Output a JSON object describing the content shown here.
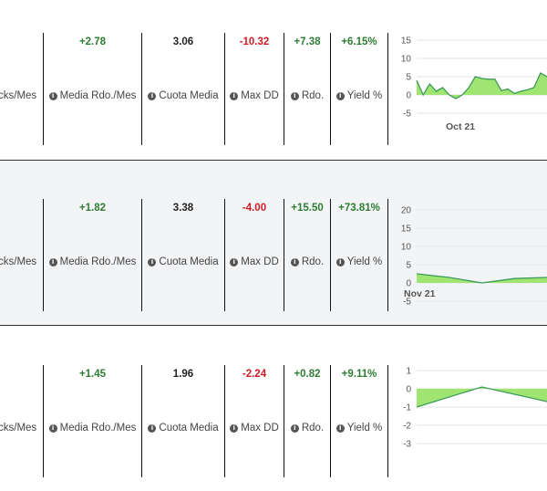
{
  "labels": {
    "picks_per_month": "cks/Mes",
    "avg_return_month": "Media Rdo./Mes",
    "avg_odds": "Cuota Media",
    "max_dd": "Max DD",
    "return": "Rdo.",
    "yield": "Yield %"
  },
  "rows": [
    {
      "media_rdo": "+2.78",
      "cuota_media": "3.06",
      "max_dd": "-10.32",
      "rdo": "+7.38",
      "yield": "+6.15%"
    },
    {
      "media_rdo": "+1.82",
      "cuota_media": "3.38",
      "max_dd": "-4.00",
      "rdo": "+15.50",
      "yield": "+73.81%"
    },
    {
      "media_rdo": "+1.45",
      "cuota_media": "1.96",
      "max_dd": "-2.24",
      "rdo": "+0.82",
      "yield": "+9.11%"
    }
  ],
  "colors": {
    "positive": "#2e7d32",
    "negative": "#d01b24",
    "area_fill": "#9be36a",
    "line": "#3a9b5a"
  },
  "chart_data": [
    {
      "type": "area",
      "ylim": [
        -5,
        15
      ],
      "yticks": [
        15,
        10,
        5,
        0,
        -5
      ],
      "xlabel_tick": "Oct 21",
      "x": [
        0,
        1,
        2,
        3,
        4,
        5,
        6,
        7,
        8,
        9,
        10,
        11,
        12,
        13,
        14,
        15,
        16,
        17,
        18,
        19,
        20
      ],
      "values": [
        4,
        0,
        3,
        1,
        2,
        0,
        -1,
        0,
        2,
        5,
        4.5,
        4.3,
        4.3,
        1.2,
        1.6,
        0.4,
        1.0,
        1.4,
        2.0,
        6.0,
        5.0
      ]
    },
    {
      "type": "area",
      "ylim": [
        -5,
        20
      ],
      "yticks": [
        20,
        15,
        10,
        5,
        0,
        -5
      ],
      "xlabel_tick": "Nov 21",
      "x": [
        0,
        1,
        2,
        3,
        4
      ],
      "values": [
        2.5,
        1.5,
        0.0,
        1.2,
        1.5
      ]
    },
    {
      "type": "area",
      "ylim": [
        -3,
        1
      ],
      "yticks": [
        1,
        0,
        -1,
        -2,
        -3
      ],
      "xlabel_tick": "",
      "x": [
        0,
        1,
        2
      ],
      "values": [
        -1.0,
        0.1,
        -0.7
      ]
    }
  ]
}
